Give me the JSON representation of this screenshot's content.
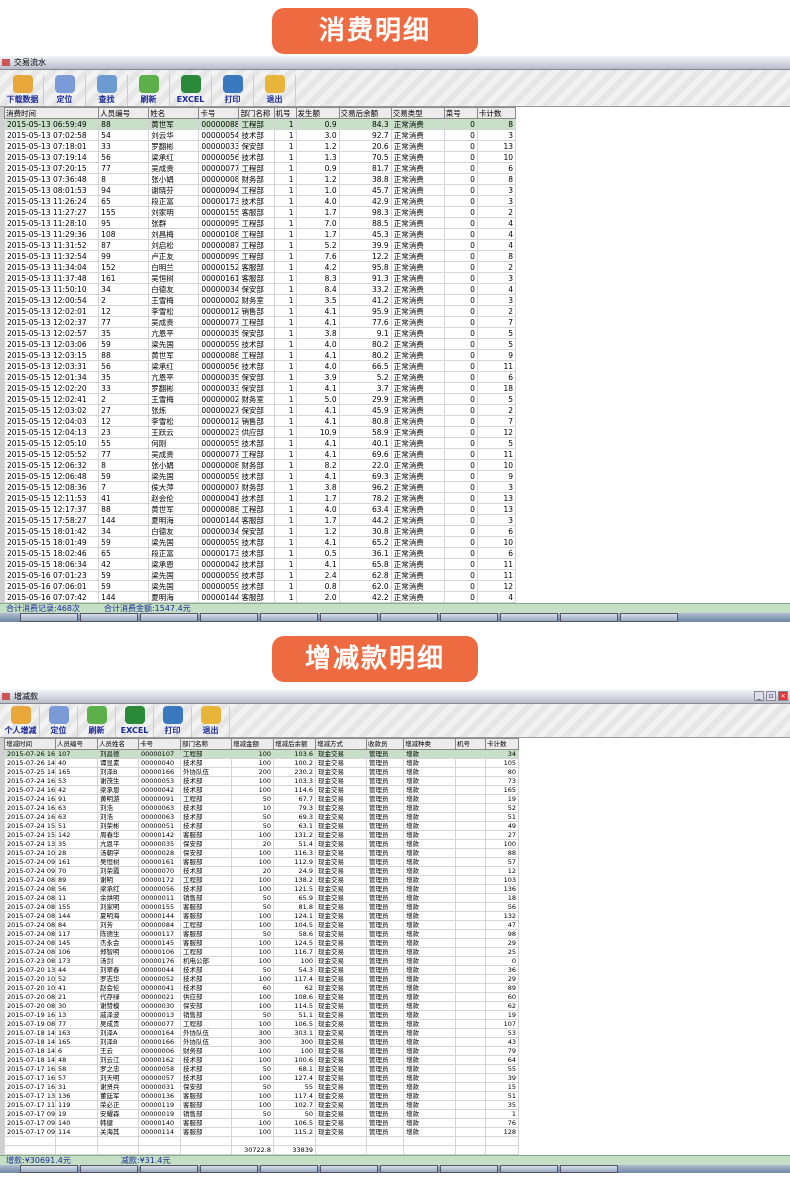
{
  "banners": {
    "consumption": "消费明细",
    "adjustment": "增减款明细"
  },
  "consumption": {
    "window_title": "交易流水",
    "toolbar": [
      "下载数据",
      "定位",
      "查找",
      "刷新",
      "EXCEL",
      "打印",
      "退出"
    ],
    "columns": [
      "消费时间",
      "人员编号",
      "姓名",
      "卡号",
      "部门名称",
      "机号",
      "发生额",
      "交易后余额",
      "交易类型",
      "菜号",
      "卡计数"
    ],
    "rows": [
      [
        "2015-05-13 06:59:49",
        "88",
        "黄世军",
        "00000088",
        "工程部",
        "1",
        "0.9",
        "84.3",
        "正常消费",
        "0",
        "8"
      ],
      [
        "2015-05-13 07:02:58",
        "54",
        "刘云华",
        "00000054",
        "技术部",
        "1",
        "3.0",
        "92.7",
        "正常消费",
        "0",
        "3"
      ],
      [
        "2015-05-13 07:18:01",
        "33",
        "罗翻彬",
        "00000033",
        "保安部",
        "1",
        "1.2",
        "20.6",
        "正常消费",
        "0",
        "13"
      ],
      [
        "2015-05-13 07:19:14",
        "56",
        "梁承红",
        "00000056",
        "技术部",
        "1",
        "1.3",
        "70.5",
        "正常消费",
        "0",
        "10"
      ],
      [
        "2015-05-13 07:20:15",
        "77",
        "吴成贵",
        "00000077",
        "工程部",
        "1",
        "0.9",
        "81.7",
        "正常消费",
        "0",
        "6"
      ],
      [
        "2015-05-13 07:36:48",
        "8",
        "张小娟",
        "00000008",
        "财务部",
        "1",
        "1.2",
        "38.8",
        "正常消费",
        "0",
        "8"
      ],
      [
        "2015-05-13 08:01:53",
        "94",
        "谢晓芬",
        "00000094",
        "工程部",
        "1",
        "1.0",
        "45.7",
        "正常消费",
        "0",
        "3"
      ],
      [
        "2015-05-13 11:26:24",
        "65",
        "段正富",
        "00000173",
        "技术部",
        "1",
        "4.0",
        "42.9",
        "正常消费",
        "0",
        "3"
      ],
      [
        "2015-05-13 11:27:27",
        "155",
        "刘家明",
        "00000155",
        "客服部",
        "1",
        "1.7",
        "98.3",
        "正常消费",
        "0",
        "2"
      ],
      [
        "2015-05-13 11:28:10",
        "95",
        "张群",
        "00000095",
        "工程部",
        "1",
        "7.0",
        "88.5",
        "正常消费",
        "0",
        "4"
      ],
      [
        "2015-05-13 11:29:36",
        "108",
        "刘昌梅",
        "00000108",
        "工程部",
        "1",
        "1.7",
        "45.3",
        "正常消费",
        "0",
        "4"
      ],
      [
        "2015-05-13 11:31:52",
        "87",
        "刘启松",
        "00000087",
        "工程部",
        "1",
        "5.2",
        "39.9",
        "正常消费",
        "0",
        "4"
      ],
      [
        "2015-05-13 11:32:54",
        "99",
        "卢正友",
        "00000099",
        "工程部",
        "1",
        "7.6",
        "12.2",
        "正常消费",
        "0",
        "8"
      ],
      [
        "2015-05-13 11:34:04",
        "152",
        "白明兰",
        "00000152",
        "客服部",
        "1",
        "4.2",
        "95.8",
        "正常消费",
        "0",
        "2"
      ],
      [
        "2015-05-13 11:37:48",
        "161",
        "吴恒树",
        "00000161",
        "客服部",
        "1",
        "8.3",
        "91.3",
        "正常消费",
        "0",
        "3"
      ],
      [
        "2015-05-13 11:50:10",
        "34",
        "白德友",
        "00000034",
        "保安部",
        "1",
        "8.4",
        "33.2",
        "正常消费",
        "0",
        "4"
      ],
      [
        "2015-05-13 12:00:54",
        "2",
        "王雪梅",
        "00000002",
        "财务室",
        "1",
        "3.5",
        "41.2",
        "正常消费",
        "0",
        "3"
      ],
      [
        "2015-05-13 12:02:01",
        "12",
        "李雪松",
        "00000012",
        "销售部",
        "1",
        "4.1",
        "95.9",
        "正常消费",
        "0",
        "2"
      ],
      [
        "2015-05-13 12:02:37",
        "77",
        "吴成贵",
        "00000077",
        "工程部",
        "1",
        "4.1",
        "77.6",
        "正常消费",
        "0",
        "7"
      ],
      [
        "2015-05-13 12:02:57",
        "35",
        "亢恩平",
        "00000035",
        "保安部",
        "1",
        "3.8",
        "9.1",
        "正常消费",
        "0",
        "5"
      ],
      [
        "2015-05-13 12:03:06",
        "59",
        "梁先国",
        "00000059",
        "技术部",
        "1",
        "4.0",
        "80.2",
        "正常消费",
        "0",
        "5"
      ],
      [
        "2015-05-13 12:03:15",
        "88",
        "黄世军",
        "00000088",
        "工程部",
        "1",
        "4.1",
        "80.2",
        "正常消费",
        "0",
        "9"
      ],
      [
        "2015-05-13 12:03:31",
        "56",
        "梁承红",
        "00000056",
        "技术部",
        "1",
        "4.0",
        "66.5",
        "正常消费",
        "0",
        "11"
      ],
      [
        "2015-05-15 12:01:34",
        "35",
        "亢恩平",
        "00000035",
        "保安部",
        "1",
        "3.9",
        "5.2",
        "正常消费",
        "0",
        "6"
      ],
      [
        "2015-05-15 12:02:20",
        "33",
        "罗翻彬",
        "00000033",
        "保安部",
        "1",
        "4.1",
        "3.7",
        "正常消费",
        "0",
        "18"
      ],
      [
        "2015-05-15 12:02:41",
        "2",
        "王雪梅",
        "00000002",
        "财务室",
        "1",
        "5.0",
        "29.9",
        "正常消费",
        "0",
        "5"
      ],
      [
        "2015-05-15 12:03:02",
        "27",
        "张炼",
        "00000027",
        "保安部",
        "1",
        "4.1",
        "45.9",
        "正常消费",
        "0",
        "2"
      ],
      [
        "2015-05-15 12:04:03",
        "12",
        "李雪松",
        "00000012",
        "销售部",
        "1",
        "4.1",
        "80.8",
        "正常消费",
        "0",
        "7"
      ],
      [
        "2015-05-15 12:04:13",
        "23",
        "王跃云",
        "00000023",
        "供应部",
        "1",
        "10.9",
        "58.9",
        "正常消费",
        "0",
        "12"
      ],
      [
        "2015-05-15 12:05:10",
        "55",
        "何刚",
        "00000055",
        "技术部",
        "1",
        "4.1",
        "40.1",
        "正常消费",
        "0",
        "5"
      ],
      [
        "2015-05-15 12:05:52",
        "77",
        "吴成贵",
        "00000077",
        "工程部",
        "1",
        "4.1",
        "69.6",
        "正常消费",
        "0",
        "11"
      ],
      [
        "2015-05-15 12:06:32",
        "8",
        "张小娟",
        "00000008",
        "财务部",
        "1",
        "8.2",
        "22.0",
        "正常消费",
        "0",
        "10"
      ],
      [
        "2015-05-15 12:06:48",
        "59",
        "梁先国",
        "00000059",
        "技术部",
        "1",
        "4.1",
        "69.3",
        "正常消费",
        "0",
        "9"
      ],
      [
        "2015-05-15 12:08:36",
        "7",
        "侯大萍",
        "00000007",
        "财务部",
        "1",
        "3.8",
        "96.2",
        "正常消费",
        "0",
        "3"
      ],
      [
        "2015-05-15 12:11:53",
        "41",
        "赵会伦",
        "00000041",
        "技术部",
        "1",
        "1.7",
        "78.2",
        "正常消费",
        "0",
        "13"
      ],
      [
        "2015-05-15 12:17:37",
        "88",
        "黄世军",
        "00000088",
        "工程部",
        "1",
        "4.0",
        "63.4",
        "正常消费",
        "0",
        "13"
      ],
      [
        "2015-05-15 17:58:27",
        "144",
        "夏明海",
        "00000144",
        "客服部",
        "1",
        "1.7",
        "44.2",
        "正常消费",
        "0",
        "3"
      ],
      [
        "2015-05-15 18:01:42",
        "34",
        "白德友",
        "00000034",
        "保安部",
        "1",
        "1.2",
        "30.8",
        "正常消费",
        "0",
        "6"
      ],
      [
        "2015-05-15 18:01:49",
        "59",
        "梁先国",
        "00000059",
        "技术部",
        "1",
        "4.1",
        "65.2",
        "正常消费",
        "0",
        "10"
      ],
      [
        "2015-05-15 18:02:46",
        "65",
        "段正富",
        "00000173",
        "技术部",
        "1",
        "0.5",
        "36.1",
        "正常消费",
        "0",
        "6"
      ],
      [
        "2015-05-15 18:06:34",
        "42",
        "梁承恩",
        "00000042",
        "技术部",
        "1",
        "4.1",
        "65.8",
        "正常消费",
        "0",
        "11"
      ],
      [
        "2015-05-16 07:01:23",
        "59",
        "梁先国",
        "00000059",
        "技术部",
        "1",
        "2.4",
        "62.8",
        "正常消费",
        "0",
        "11"
      ],
      [
        "2015-05-16 07:06:01",
        "59",
        "梁先国",
        "00000059",
        "技术部",
        "1",
        "0.8",
        "62.0",
        "正常消费",
        "0",
        "12"
      ],
      [
        "2015-05-16 07:07:42",
        "144",
        "夏明海",
        "00000144",
        "客服部",
        "1",
        "2.0",
        "42.2",
        "正常消费",
        "0",
        "4"
      ]
    ],
    "status": {
      "records": "合计消费记录:468次",
      "amount": "合计消费金额:1547.4元"
    }
  },
  "adjustment": {
    "window_title": "增减款",
    "toolbar": [
      "个人增减",
      "定位",
      "刷新",
      "EXCEL",
      "打印",
      "退出"
    ],
    "columns": [
      "增减时间",
      "人员编号",
      "人员姓名",
      "卡号",
      "部门名称",
      "增减金额",
      "增减后余额",
      "增减方式",
      "收款员",
      "增减种类",
      "机号",
      "卡计数"
    ],
    "rows": [
      [
        "2015-07-26 16:09",
        "107",
        "刘昌德",
        "00000107",
        "工程部",
        "100",
        "103.6",
        "现金交易",
        "管理员",
        "增款",
        "",
        "34"
      ],
      [
        "2015-07-26 14:11",
        "40",
        "谭显素",
        "00000040",
        "技术部",
        "100",
        "100.2",
        "现金交易",
        "管理员",
        "增款",
        "",
        "105"
      ],
      [
        "2015-07-25 14:16",
        "165",
        "刘泽B",
        "00000166",
        "外协队伍",
        "200",
        "230.2",
        "现金交易",
        "管理员",
        "增款",
        "",
        "80"
      ],
      [
        "2015-07-24 16:27",
        "53",
        "谢茂生",
        "00000053",
        "技术部",
        "100",
        "103.3",
        "现金交易",
        "管理员",
        "增款",
        "",
        "73"
      ],
      [
        "2015-07-24 16:17",
        "42",
        "梁承恩",
        "00000042",
        "技术部",
        "100",
        "114.6",
        "现金交易",
        "管理员",
        "增款",
        "",
        "165"
      ],
      [
        "2015-07-24 16:17",
        "91",
        "黄明游",
        "00000091",
        "工程部",
        "50",
        "67.7",
        "现金交易",
        "管理员",
        "增款",
        "",
        "19"
      ],
      [
        "2015-07-24 16:17",
        "63",
        "刘浩",
        "00000063",
        "技术部",
        "10",
        "79.3",
        "现金交易",
        "管理员",
        "增款",
        "",
        "52"
      ],
      [
        "2015-07-24 16:16",
        "63",
        "刘浩",
        "00000063",
        "技术部",
        "50",
        "69.3",
        "现金交易",
        "管理员",
        "增款",
        "",
        "51"
      ],
      [
        "2015-07-24 15:20",
        "51",
        "刘荣彬",
        "00000051",
        "技术部",
        "50",
        "63.1",
        "现金交易",
        "管理员",
        "增款",
        "",
        "49"
      ],
      [
        "2015-07-24 15:10",
        "142",
        "周春华",
        "00000142",
        "客服部",
        "100",
        "131.2",
        "现金交易",
        "管理员",
        "增款",
        "",
        "27"
      ],
      [
        "2015-07-24 13:08",
        "35",
        "亢恩平",
        "00000035",
        "保安部",
        "20",
        "51.4",
        "现金交易",
        "管理员",
        "增款",
        "",
        "100"
      ],
      [
        "2015-07-24 10:17",
        "28",
        "汤朝学",
        "00000028",
        "保安部",
        "100",
        "116.3",
        "现金交易",
        "管理员",
        "增款",
        "",
        "88"
      ],
      [
        "2015-07-24 09:45",
        "161",
        "吴恒树",
        "00000161",
        "客服部",
        "100",
        "112.9",
        "现金交易",
        "管理员",
        "增款",
        "",
        "57"
      ],
      [
        "2015-07-24 09:04",
        "70",
        "刘荣霞",
        "00000070",
        "技术部",
        "20",
        "24.9",
        "现金交易",
        "管理员",
        "增款",
        "",
        "12"
      ],
      [
        "2015-07-24 08:48",
        "89",
        "谢明",
        "00000172",
        "工程部",
        "100",
        "138.2",
        "现金交易",
        "管理员",
        "增款",
        "",
        "103"
      ],
      [
        "2015-07-24 08:36",
        "56",
        "梁承红",
        "00000056",
        "技术部",
        "100",
        "121.5",
        "现金交易",
        "管理员",
        "增款",
        "",
        "136"
      ],
      [
        "2015-07-24 08:35",
        "11",
        "余烘明",
        "00000011",
        "销售部",
        "50",
        "65.9",
        "现金交易",
        "管理员",
        "增款",
        "",
        "18"
      ],
      [
        "2015-07-24 08:35",
        "155",
        "刘家明",
        "00000155",
        "客服部",
        "50",
        "81.8",
        "现金交易",
        "管理员",
        "增款",
        "",
        "56"
      ],
      [
        "2015-07-24 08:34",
        "144",
        "夏明海",
        "00000144",
        "客服部",
        "100",
        "124.1",
        "现金交易",
        "管理员",
        "增款",
        "",
        "132"
      ],
      [
        "2015-07-24 08:33",
        "84",
        "刘芳",
        "00000084",
        "工程部",
        "100",
        "104.5",
        "现金交易",
        "管理员",
        "增款",
        "",
        "47"
      ],
      [
        "2015-07-24 08:17",
        "117",
        "陈德生",
        "00000117",
        "客服部",
        "50",
        "58.6",
        "现金交易",
        "管理员",
        "增款",
        "",
        "98"
      ],
      [
        "2015-07-24 08:17",
        "145",
        "杰永会",
        "00000145",
        "客服部",
        "100",
        "124.5",
        "现金交易",
        "管理员",
        "增款",
        "",
        "29"
      ],
      [
        "2015-07-24 08:16",
        "106",
        "郑智明",
        "00000106",
        "工程部",
        "100",
        "116.7",
        "现金交易",
        "管理员",
        "增款",
        "",
        "25"
      ],
      [
        "2015-07-23 08:21",
        "173",
        "汤剑",
        "00000176",
        "机电公部",
        "100",
        "100",
        "现金交易",
        "管理员",
        "增款",
        "",
        "0"
      ],
      [
        "2015-07-20 13:47",
        "44",
        "刘翠春",
        "00000044",
        "技术部",
        "50",
        "54.3",
        "现金交易",
        "管理员",
        "增款",
        "",
        "36"
      ],
      [
        "2015-07-20 10:25",
        "52",
        "罗志华",
        "00000052",
        "技术部",
        "100",
        "117.4",
        "现金交易",
        "管理员",
        "增款",
        "",
        "29"
      ],
      [
        "2015-07-20 10:14",
        "41",
        "赵会伦",
        "00000041",
        "技术部",
        "60",
        "62",
        "现金交易",
        "管理员",
        "增款",
        "",
        "89"
      ],
      [
        "2015-07-20 08:47",
        "21",
        "代存绿",
        "00000021",
        "供应部",
        "100",
        "108.6",
        "现金交易",
        "管理员",
        "增款",
        "",
        "60"
      ],
      [
        "2015-07-20 08:11",
        "30",
        "谢赞模",
        "00000030",
        "保安部",
        "100",
        "114.5",
        "现金交易",
        "管理员",
        "增款",
        "",
        "62"
      ],
      [
        "2015-07-19 16:19",
        "13",
        "戚泽波",
        "00000013",
        "销售部",
        "50",
        "51.1",
        "现金交易",
        "管理员",
        "增款",
        "",
        "19"
      ],
      [
        "2015-07-19 08:50",
        "77",
        "吴成贵",
        "00000077",
        "工程部",
        "100",
        "106.5",
        "现金交易",
        "管理员",
        "增款",
        "",
        "107"
      ],
      [
        "2015-07-18 14:50",
        "163",
        "刘泽A",
        "00000164",
        "外协队伍",
        "300",
        "303.1",
        "现金交易",
        "管理员",
        "增款",
        "",
        "53"
      ],
      [
        "2015-07-18 14:49",
        "165",
        "刘泽B",
        "00000166",
        "外协队伍",
        "300",
        "300",
        "现金交易",
        "管理员",
        "增款",
        "",
        "43"
      ],
      [
        "2015-07-18 14:37",
        "6",
        "王云",
        "00000006",
        "财务部",
        "100",
        "100",
        "现金交易",
        "管理员",
        "增款",
        "",
        "79"
      ],
      [
        "2015-07-18 14:03",
        "48",
        "刘云江",
        "00000162",
        "技术部",
        "100",
        "100.6",
        "现金交易",
        "管理员",
        "增款",
        "",
        "64"
      ],
      [
        "2015-07-17 16:14",
        "58",
        "罗之忠",
        "00000058",
        "技术部",
        "50",
        "68.1",
        "现金交易",
        "管理员",
        "增款",
        "",
        "55"
      ],
      [
        "2015-07-17 16:05",
        "57",
        "刘天明",
        "00000057",
        "技术部",
        "100",
        "127.4",
        "现金交易",
        "管理员",
        "增款",
        "",
        "39"
      ],
      [
        "2015-07-17 16:05",
        "31",
        "谢贤兵",
        "00000031",
        "保安部",
        "50",
        "55",
        "现金交易",
        "管理员",
        "增款",
        "",
        "15"
      ],
      [
        "2015-07-17 13:12",
        "136",
        "董廷军",
        "00000136",
        "客服部",
        "100",
        "117.4",
        "现金交易",
        "管理员",
        "增款",
        "",
        "51"
      ],
      [
        "2015-07-17 11:31",
        "119",
        "荣必正",
        "00000119",
        "客服部",
        "100",
        "102.7",
        "现金交易",
        "管理员",
        "增款",
        "",
        "35"
      ],
      [
        "2015-07-17 09:21",
        "19",
        "安耀森",
        "00000019",
        "销售部",
        "50",
        "50",
        "现金交易",
        "管理员",
        "增款",
        "",
        "1"
      ],
      [
        "2015-07-17 09:04",
        "140",
        "韩健",
        "00000140",
        "客服部",
        "100",
        "106.5",
        "现金交易",
        "管理员",
        "增款",
        "",
        "76"
      ],
      [
        "2015-07-17 09:04",
        "114",
        "关海其",
        "00000114",
        "客服部",
        "100",
        "115.2",
        "现金交易",
        "管理员",
        "增款",
        "",
        "128"
      ]
    ],
    "totals": {
      "amount": "30722.8",
      "balance": "33839"
    },
    "status": {
      "increase": "增款:¥30691.4元",
      "decrease": "减款:¥31.4元"
    }
  }
}
